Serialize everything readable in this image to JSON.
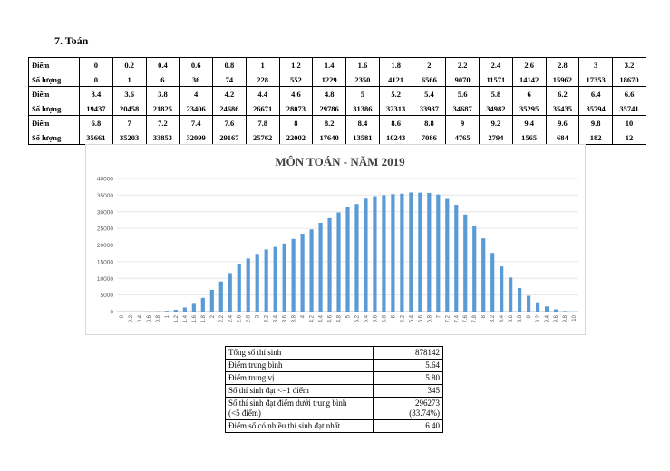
{
  "section_heading": "7.  Toán",
  "score_table": {
    "row_label_score": "Điểm",
    "row_label_count": "Số lượng",
    "blocks": [
      {
        "scores": [
          "0",
          "0.2",
          "0.4",
          "0.6",
          "0.8",
          "1",
          "1.2",
          "1.4",
          "1.6",
          "1.8",
          "2",
          "2.2",
          "2.4",
          "2.6",
          "2.8",
          "3",
          "3.2"
        ],
        "counts": [
          "0",
          "1",
          "6",
          "36",
          "74",
          "228",
          "552",
          "1229",
          "2350",
          "4121",
          "6566",
          "9070",
          "11571",
          "14142",
          "15962",
          "17353",
          "18670"
        ]
      },
      {
        "scores": [
          "3.4",
          "3.6",
          "3.8",
          "4",
          "4.2",
          "4.4",
          "4.6",
          "4.8",
          "5",
          "5.2",
          "5.4",
          "5.6",
          "5.8",
          "6",
          "6.2",
          "6.4",
          "6.6"
        ],
        "counts": [
          "19437",
          "20458",
          "21825",
          "23406",
          "24686",
          "26671",
          "28073",
          "29786",
          "31386",
          "32313",
          "33937",
          "34687",
          "34982",
          "35295",
          "35435",
          "35794",
          "35741"
        ]
      },
      {
        "scores": [
          "6.8",
          "7",
          "7.2",
          "7.4",
          "7.6",
          "7.8",
          "8",
          "8.2",
          "8.4",
          "8.6",
          "8.8",
          "9",
          "9.2",
          "9.4",
          "9.6",
          "9.8",
          "10"
        ],
        "counts": [
          "35661",
          "35203",
          "33853",
          "32099",
          "29167",
          "25762",
          "22002",
          "17640",
          "13581",
          "10243",
          "7086",
          "4765",
          "2794",
          "1565",
          "684",
          "182",
          "12"
        ]
      }
    ]
  },
  "chart_data": {
    "type": "bar",
    "title": "MÔN TOÁN - NĂM 2019",
    "color": "#5b9bd5",
    "ylim": [
      0,
      40000
    ],
    "yticks": [
      0,
      5000,
      10000,
      15000,
      20000,
      25000,
      30000,
      35000,
      40000
    ],
    "grid": true,
    "categories": [
      "0",
      "0.2",
      "0.4",
      "0.6",
      "0.8",
      "1",
      "1.2",
      "1.4",
      "1.6",
      "1.8",
      "2",
      "2.2",
      "2.4",
      "2.6",
      "2.8",
      "3",
      "3.2",
      "3.4",
      "3.6",
      "3.8",
      "4",
      "4.2",
      "4.4",
      "4.6",
      "4.8",
      "5",
      "5.2",
      "5.4",
      "5.6",
      "5.8",
      "6",
      "6.2",
      "6.4",
      "6.6",
      "6.8",
      "7",
      "7.2",
      "7.4",
      "7.6",
      "7.8",
      "8",
      "8.2",
      "8.4",
      "8.6",
      "8.8",
      "9",
      "9.2",
      "9.4",
      "9.6",
      "9.8",
      "10"
    ],
    "values": [
      0,
      1,
      6,
      36,
      74,
      228,
      552,
      1229,
      2350,
      4121,
      6566,
      9070,
      11571,
      14142,
      15962,
      17353,
      18670,
      19437,
      20458,
      21825,
      23406,
      24686,
      26671,
      28073,
      29786,
      31386,
      32313,
      33937,
      34687,
      34982,
      35295,
      35435,
      35794,
      35741,
      35661,
      35203,
      33853,
      32099,
      29167,
      25762,
      22002,
      17640,
      13581,
      10243,
      7086,
      4765,
      2794,
      1565,
      684,
      182,
      12
    ]
  },
  "summary": [
    {
      "label": "Tổng số thí sinh",
      "value": "878142"
    },
    {
      "label": "Điểm trung bình",
      "value": "5.64"
    },
    {
      "label": "Điểm trung vị",
      "value": "5.80"
    },
    {
      "label": "Số thí sinh đạt <=1 điểm",
      "value": "345"
    },
    {
      "label": "Số thí sinh đạt điểm dưới trung bình",
      "label2": "(<5 điểm)",
      "value": "296273",
      "value2": "(33.74%)"
    },
    {
      "label": "Điểm số có nhiều thí sinh đạt nhất",
      "value": "6.40"
    }
  ]
}
